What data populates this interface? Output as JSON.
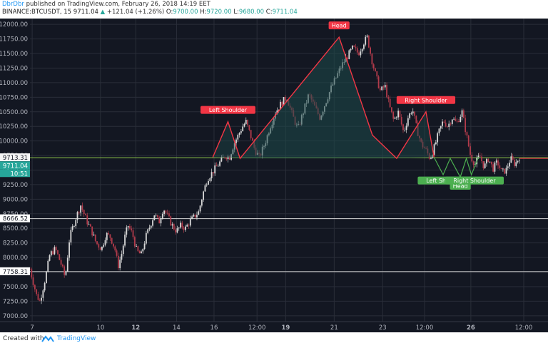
{
  "header": {
    "user": "DbrDbr",
    "published": "published on TradingView.com, February 26, 2018 14:19 EET",
    "symbol": "BINANCE:BTCUSDT, 15",
    "last": "9711.04",
    "change": "+121.04 (+1.26%)",
    "o_label": "O:",
    "o": "9700.00",
    "h_label": "H:",
    "h": "9720.00",
    "l_label": "L:",
    "l": "9680.00",
    "c_label": "C:",
    "c": "9711.04"
  },
  "footer": {
    "created_with": "Created with",
    "brand": "TradingView"
  },
  "colors": {
    "background": "#131722",
    "grid": "#2a2e39",
    "pattern": "#f23645",
    "fill": "#1d4a4a",
    "green_line": "#8bc34a",
    "small_pattern": "#4caf50",
    "candle_up": "#d8d8d8",
    "candle_down": "#b23b4b"
  },
  "chart_data": {
    "type": "candlestick",
    "ylim": [
      6900,
      12100
    ],
    "y_ticks": [
      "12000.00",
      "11750.00",
      "11500.00",
      "11250.00",
      "11000.00",
      "10750.00",
      "10500.00",
      "10250.00",
      "10000.00",
      "9750.00",
      "9500.00",
      "9250.00",
      "9000.00",
      "8750.00",
      "8500.00",
      "8250.00",
      "8000.00",
      "7750.00",
      "7500.00",
      "7250.00",
      "7000.00"
    ],
    "x_ticks": [
      "7",
      "10",
      "12",
      "14",
      "16",
      "12:00",
      "19",
      "21",
      "23",
      "12:00",
      "26",
      "12:00"
    ],
    "price_labels": [
      {
        "label": "9713.31",
        "value": 9713.31,
        "kind": "line"
      },
      {
        "label": "9711.04",
        "value": 9711.04,
        "kind": "last"
      },
      {
        "label": "10:51",
        "value": 9600,
        "kind": "time"
      },
      {
        "label": "8666.52",
        "value": 8666.52,
        "kind": "level"
      },
      {
        "label": "7758.31",
        "value": 7758.31,
        "kind": "level"
      }
    ],
    "levels": [
      {
        "name": "green-line",
        "value": 9713.31
      },
      {
        "name": "level-8666",
        "value": 8666.52
      },
      {
        "name": "level-7758",
        "value": 7758.31
      }
    ],
    "pattern_points": [
      {
        "x": 18.1,
        "y": 9720
      },
      {
        "x": 19.6,
        "y": 10330
      },
      {
        "x": 20.8,
        "y": 9700
      },
      {
        "x": 30.6,
        "y": 11780
      },
      {
        "x": 33.9,
        "y": 10100
      },
      {
        "x": 36.3,
        "y": 9700
      },
      {
        "x": 39.2,
        "y": 10500
      },
      {
        "x": 40.0,
        "y": 9720
      }
    ],
    "pattern_labels": [
      "Left Shoulder",
      "Head",
      "Right Shoulder"
    ],
    "small_pattern_labels": [
      "Left Shoulder",
      "Head",
      "Right Shoulder"
    ],
    "candle_path": [
      [
        0.0,
        7800
      ],
      [
        0.6,
        7350
      ],
      [
        0.9,
        7250
      ],
      [
        1.4,
        7650
      ],
      [
        1.8,
        8050
      ],
      [
        2.3,
        8150
      ],
      [
        2.8,
        7900
      ],
      [
        3.2,
        7650
      ],
      [
        3.6,
        8350
      ],
      [
        4.1,
        8650
      ],
      [
        4.6,
        8900
      ],
      [
        5.1,
        8650
      ],
      [
        5.6,
        8450
      ],
      [
        6.0,
        8250
      ],
      [
        6.5,
        8150
      ],
      [
        6.9,
        8400
      ],
      [
        7.3,
        8350
      ],
      [
        7.7,
        8150
      ],
      [
        8.0,
        7850
      ],
      [
        8.3,
        8050
      ],
      [
        8.6,
        8350
      ],
      [
        8.9,
        8550
      ],
      [
        9.3,
        8400
      ],
      [
        9.7,
        8100
      ],
      [
        10.1,
        8050
      ],
      [
        10.5,
        8350
      ],
      [
        10.9,
        8550
      ],
      [
        11.3,
        8750
      ],
      [
        11.7,
        8600
      ],
      [
        12.1,
        8850
      ],
      [
        12.5,
        8700
      ],
      [
        12.9,
        8550
      ],
      [
        13.3,
        8450
      ],
      [
        13.7,
        8550
      ],
      [
        14.1,
        8500
      ],
      [
        14.5,
        8620
      ],
      [
        14.9,
        8700
      ],
      [
        15.3,
        8780
      ],
      [
        15.7,
        9100
      ],
      [
        16.1,
        9350
      ],
      [
        16.5,
        9450
      ],
      [
        16.9,
        9550
      ],
      [
        17.3,
        9650
      ],
      [
        17.7,
        9750
      ],
      [
        18.1,
        9720
      ],
      [
        18.5,
        9950
      ],
      [
        18.9,
        10100
      ],
      [
        19.3,
        10250
      ],
      [
        19.6,
        10330
      ],
      [
        20.0,
        10100
      ],
      [
        20.4,
        9850
      ],
      [
        20.8,
        9720
      ],
      [
        21.3,
        9950
      ],
      [
        21.8,
        10250
      ],
      [
        22.3,
        10500
      ],
      [
        22.8,
        10650
      ],
      [
        23.3,
        10750
      ],
      [
        23.8,
        10450
      ],
      [
        24.3,
        10200
      ],
      [
        24.8,
        10500
      ],
      [
        25.3,
        10800
      ],
      [
        25.8,
        10600
      ],
      [
        26.3,
        10400
      ],
      [
        26.8,
        10650
      ],
      [
        27.3,
        10900
      ],
      [
        27.8,
        11100
      ],
      [
        28.3,
        11300
      ],
      [
        28.8,
        11450
      ],
      [
        29.3,
        11600
      ],
      [
        29.8,
        11500
      ],
      [
        30.3,
        11700
      ],
      [
        30.6,
        11780
      ],
      [
        31.0,
        11400
      ],
      [
        31.4,
        11100
      ],
      [
        31.8,
        10850
      ],
      [
        32.2,
        10950
      ],
      [
        32.6,
        10600
      ],
      [
        33.0,
        10350
      ],
      [
        33.4,
        10500
      ],
      [
        33.9,
        10150
      ],
      [
        34.3,
        10400
      ],
      [
        34.7,
        10550
      ],
      [
        35.1,
        10200
      ],
      [
        35.5,
        9950
      ],
      [
        35.9,
        9850
      ],
      [
        36.3,
        9700
      ],
      [
        36.7,
        9900
      ],
      [
        37.1,
        10150
      ],
      [
        37.5,
        10350
      ],
      [
        37.9,
        10250
      ],
      [
        38.3,
        10400
      ],
      [
        38.7,
        10300
      ],
      [
        39.2,
        10500
      ],
      [
        39.6,
        10100
      ],
      [
        40.0,
        9720
      ],
      [
        40.4,
        9600
      ],
      [
        40.8,
        9750
      ],
      [
        41.2,
        9550
      ],
      [
        41.6,
        9700
      ],
      [
        42.0,
        9520
      ],
      [
        42.4,
        9640
      ],
      [
        42.8,
        9460
      ],
      [
        43.2,
        9500
      ],
      [
        43.6,
        9700
      ],
      [
        44.0,
        9600
      ],
      [
        44.4,
        9720
      ]
    ]
  }
}
